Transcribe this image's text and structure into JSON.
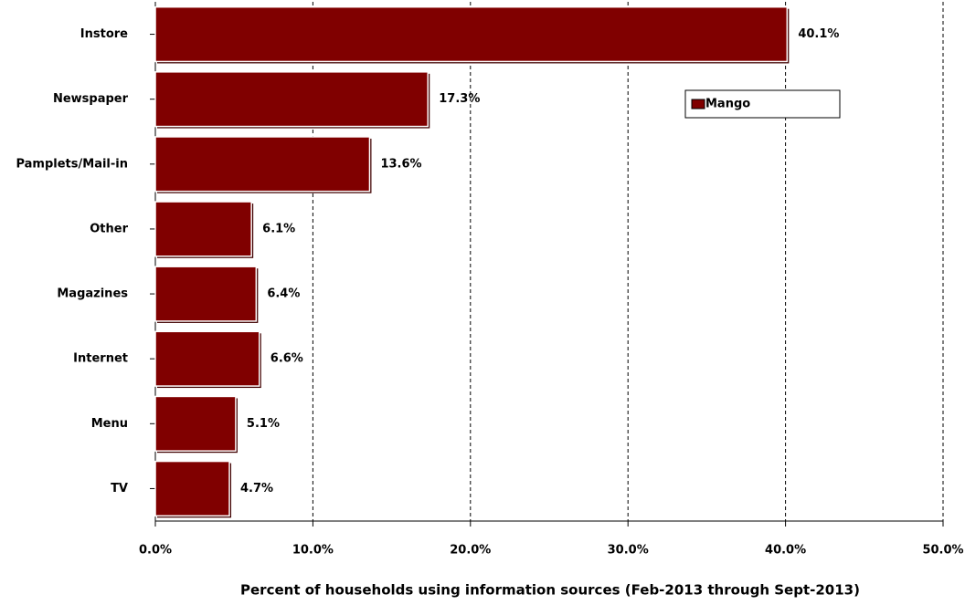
{
  "chart_data": {
    "type": "bar",
    "orientation": "horizontal",
    "x_label": "Percent of households using information sources (Feb-2013 through Sept-2013)",
    "categories": [
      "Instore",
      "Newspaper",
      "Pamplets/Mail-in",
      "Other",
      "Magazines",
      "Internet",
      "Menu",
      "TV"
    ],
    "series": [
      {
        "name": "Mango",
        "color": "#800000",
        "values": [
          40.1,
          17.3,
          13.6,
          6.1,
          6.4,
          6.6,
          5.1,
          4.7
        ],
        "value_labels": [
          "40.1%",
          "17.3%",
          "13.6%",
          "6.1%",
          "6.4%",
          "6.6%",
          "5.1%",
          "4.7%"
        ]
      }
    ],
    "xlim": [
      0,
      50
    ],
    "xticks": [
      {
        "value": 0,
        "label": "0.0%"
      },
      {
        "value": 10,
        "label": "10.0%"
      },
      {
        "value": 20,
        "label": "20.0%"
      },
      {
        "value": 30,
        "label": "30.0%"
      },
      {
        "value": 40,
        "label": "40.0%"
      },
      {
        "value": 50,
        "label": "50.0%"
      }
    ],
    "grid": true,
    "legend": "upper right"
  }
}
